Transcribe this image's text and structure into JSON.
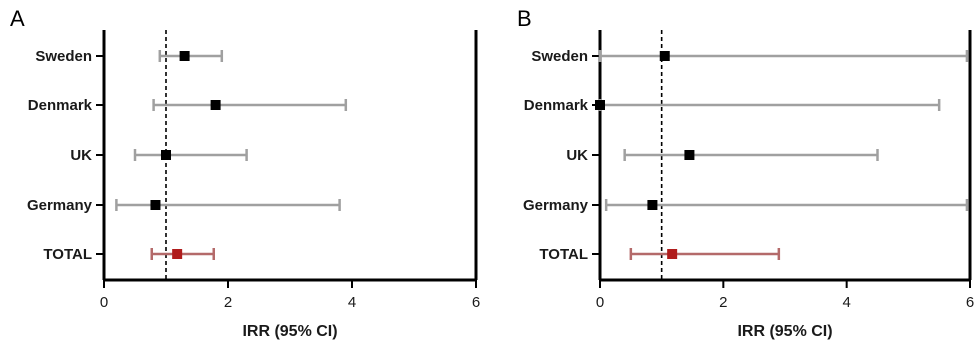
{
  "chart_data": [
    {
      "type": "forest",
      "panel_label": "A",
      "categories": [
        "Sweden",
        "Denmark",
        "UK",
        "Germany",
        "TOTAL"
      ],
      "estimates": [
        1.3,
        1.8,
        1.0,
        0.83,
        1.18
      ],
      "ci_low": [
        0.9,
        0.8,
        0.5,
        0.2,
        0.77
      ],
      "ci_high": [
        1.9,
        3.9,
        2.3,
        3.8,
        1.77
      ],
      "reference_line": 1,
      "xlabel": "IRR (95% CI)",
      "xlim": [
        0,
        6
      ],
      "xticks": [
        0,
        2,
        4,
        6
      ],
      "colors": {
        "country_marker": "#000000",
        "country_ci": "#a0a0a0",
        "total": "#b01c1c",
        "total_ci": "#b46a6a"
      }
    },
    {
      "type": "forest",
      "panel_label": "B",
      "categories": [
        "Sweden",
        "Denmark",
        "UK",
        "Germany",
        "TOTAL"
      ],
      "estimates": [
        1.05,
        0.0,
        1.45,
        0.85,
        1.17
      ],
      "ci_low": [
        0.0,
        0.0,
        0.4,
        0.1,
        0.5
      ],
      "ci_high": [
        5.95,
        5.5,
        4.5,
        5.95,
        2.9
      ],
      "reference_line": 1,
      "xlabel": "IRR (95% CI)",
      "xlim": [
        0,
        6
      ],
      "xticks": [
        0,
        2,
        4,
        6
      ],
      "colors": {
        "country_marker": "#000000",
        "country_ci": "#a0a0a0",
        "total": "#b01c1c",
        "total_ci": "#b46a6a"
      }
    }
  ]
}
